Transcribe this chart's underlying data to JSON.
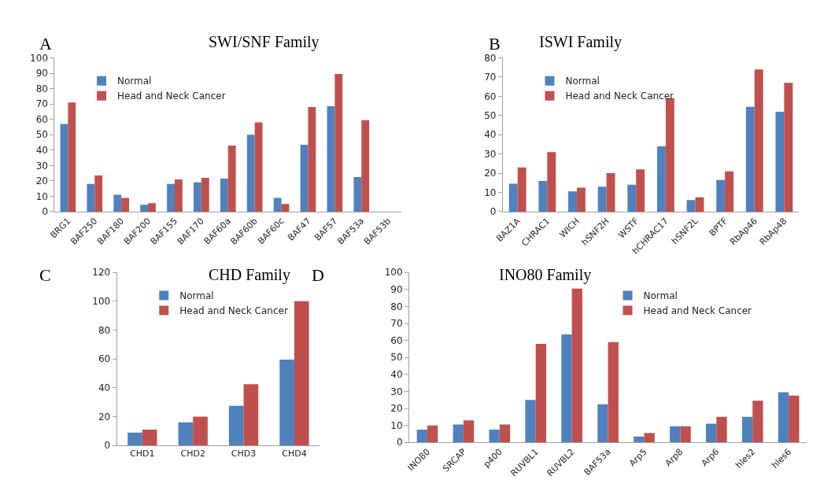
{
  "chart_data": [
    {
      "type": "bar",
      "title": "SWI/SNF Family",
      "annotations": [
        "A"
      ],
      "categories": [
        "BRG1",
        "BAF250",
        "BAF180",
        "BAF200",
        "BAF155",
        "BAF170",
        "BAF60a",
        "BAF60b",
        "BAF60c",
        "BAF47",
        "BAF57",
        "BAF53a",
        "BAF53b"
      ],
      "series": [
        {
          "name": "Normal",
          "color": "#4f81bd",
          "values": [
            57,
            18,
            11,
            4.5,
            18,
            19,
            21.5,
            50,
            9,
            43.5,
            68.5,
            22.5,
            null
          ]
        },
        {
          "name": "Head and Neck Cancer",
          "color": "#c0504d",
          "values": [
            71,
            23.5,
            9,
            5.5,
            21,
            22,
            43,
            58,
            5,
            68,
            89.5,
            59.5,
            null
          ]
        }
      ],
      "ylim": [
        0,
        100
      ],
      "yticks": [
        0,
        10,
        20,
        30,
        40,
        50,
        60,
        70,
        80,
        90,
        100
      ],
      "legend": "top left"
    },
    {
      "type": "bar",
      "title": "ISWI Family",
      "annotations": [
        "B"
      ],
      "categories": [
        "BAZ1A",
        "CHRAC1",
        "WICH",
        "hSNF2H",
        "WSTF",
        "hCHRAC17",
        "hSNF2L",
        "BPTF",
        "RbAp46",
        "RbAp48"
      ],
      "series": [
        {
          "name": "Normal",
          "color": "#4f81bd",
          "values": [
            14.5,
            16,
            10.5,
            13,
            14,
            34,
            6,
            16.5,
            54.5,
            52
          ]
        },
        {
          "name": "Head and Neck Cancer",
          "color": "#c0504d",
          "values": [
            23,
            31,
            12.5,
            20,
            22,
            59,
            7.5,
            21,
            74,
            67
          ]
        }
      ],
      "ylim": [
        0,
        80
      ],
      "yticks": [
        0,
        10,
        20,
        30,
        40,
        50,
        60,
        70,
        80
      ],
      "legend": "top left"
    },
    {
      "type": "bar",
      "title": "CHD Family",
      "annotations": [
        "C"
      ],
      "categories": [
        "CHD1",
        "CHD2",
        "CHD3",
        "CHD4"
      ],
      "series": [
        {
          "name": "Normal",
          "color": "#4f81bd",
          "values": [
            9,
            16,
            27.5,
            59.5
          ]
        },
        {
          "name": "Head and Neck Cancer",
          "color": "#c0504d",
          "values": [
            11,
            20,
            42.5,
            100
          ]
        }
      ],
      "ylim": [
        0,
        120
      ],
      "yticks": [
        0,
        20,
        40,
        60,
        80,
        100,
        120
      ],
      "legend": "top left"
    },
    {
      "type": "bar",
      "title": "INO80 Family",
      "annotations": [
        "D"
      ],
      "categories": [
        "INO80",
        "SRCAP",
        "p400",
        "RUVBL1",
        "RUVBL2",
        "BAF53a",
        "Arp5",
        "Arp8",
        "Arp6",
        "hles2",
        "hles6"
      ],
      "series": [
        {
          "name": "Normal",
          "color": "#4f81bd",
          "values": [
            7.5,
            10.5,
            7.5,
            25,
            63.5,
            22.5,
            3.5,
            9.5,
            11,
            15,
            29.5
          ]
        },
        {
          "name": "Head and Neck Cancer",
          "color": "#c0504d",
          "values": [
            10,
            13,
            10.5,
            58,
            90.5,
            59,
            5.5,
            9.5,
            15,
            24.5,
            27.5
          ]
        }
      ],
      "ylim": [
        0,
        100
      ],
      "yticks": [
        0,
        10,
        20,
        30,
        40,
        50,
        60,
        70,
        80,
        90,
        100
      ],
      "legend": "top right"
    }
  ]
}
